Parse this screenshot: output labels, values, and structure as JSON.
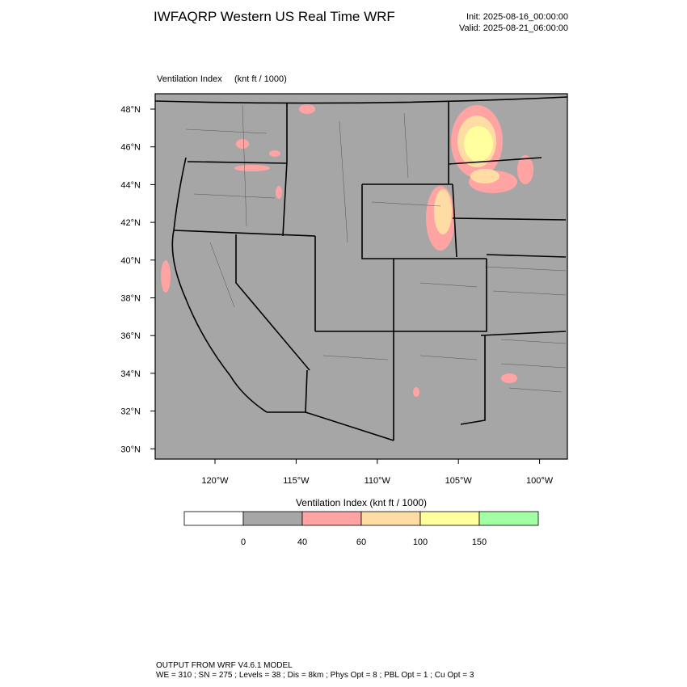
{
  "header": {
    "title": "IWFAQRP Western US Real Time WRF",
    "init": "Init: 2025-08-16_00:00:00",
    "valid": "Valid: 2025-08-21_06:00:00"
  },
  "map": {
    "label": "Ventilation Index",
    "units": "(knt ft / 1000)",
    "lat_labels": [
      "48°N",
      "46°N",
      "44°N",
      "42°N",
      "40°N",
      "38°N",
      "36°N",
      "34°N",
      "32°N",
      "30°N"
    ],
    "lon_labels": [
      "120°W",
      "115°W",
      "110°W",
      "105°W",
      "100°W"
    ]
  },
  "colorbar": {
    "title": "Ventilation Index  (knt ft / 1000)",
    "colors": [
      "#ffffff",
      "#a6a6a6",
      "#ffa3a3",
      "#ffdca3",
      "#ffff9e",
      "#a3ffa3"
    ],
    "ticks": [
      0,
      40,
      60,
      100,
      150
    ]
  },
  "footer": {
    "line1": "OUTPUT FROM WRF V4.6.1 MODEL",
    "line2": "WE = 310 ; SN = 275 ; Levels = 38 ; Dis = 8km ; Phys Opt = 8 ; PBL Opt = 1 ; Cu Opt = 3"
  }
}
